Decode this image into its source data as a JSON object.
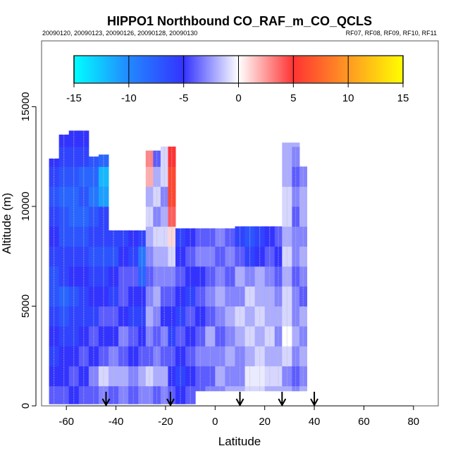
{
  "chart_data": {
    "type": "heatmap",
    "title": "HIPPO1 Northbound CO_RAF_m_CO_QCLS",
    "subtitle_left": "20090120, 20090123, 20090126, 20090128, 20090130",
    "subtitle_right": "RF07, RF08, RF09, RF10, RF11",
    "xlabel": "Latitude",
    "ylabel": "Altitude (m)",
    "xlim": [
      -70,
      90
    ],
    "ylim": [
      0,
      18300
    ],
    "xticks": [
      -60,
      -40,
      -20,
      0,
      20,
      40,
      60,
      80
    ],
    "yticks": [
      0,
      5000,
      10000,
      15000
    ],
    "colorbar": {
      "range": [
        -15,
        15
      ],
      "ticks": [
        -15,
        -10,
        -5,
        0,
        5,
        10,
        15
      ],
      "stops": [
        {
          "v": -15,
          "color": "#00ffff"
        },
        {
          "v": -10,
          "color": "#2288ff"
        },
        {
          "v": -5,
          "color": "#3333ff"
        },
        {
          "v": 0,
          "color": "#ffffff"
        },
        {
          "v": 5,
          "color": "#ff3333"
        },
        {
          "v": 10,
          "color": "#ff9922"
        },
        {
          "v": 15,
          "color": "#ffff00"
        }
      ]
    },
    "bin_altitude_m": 1000,
    "columns": [
      {
        "lat0": -67,
        "lat1": -63,
        "bottom": 100,
        "top": 12400,
        "values": [
          -4,
          -5,
          -6,
          -5,
          -6,
          -7,
          -7,
          -6,
          -5,
          -6,
          -7,
          -6,
          -5
        ]
      },
      {
        "lat0": -63,
        "lat1": -59,
        "bottom": 100,
        "top": 13600,
        "values": [
          -4,
          -5,
          -5,
          -6,
          -7,
          -8,
          -6,
          -6,
          -7,
          -7,
          -8,
          -7,
          -6,
          -5
        ]
      },
      {
        "lat0": -59,
        "lat1": -55,
        "bottom": 100,
        "top": 13800,
        "values": [
          -5,
          -4,
          -5,
          -6,
          -6,
          -7,
          -5,
          -6,
          -7,
          -8,
          -8,
          -7,
          -6,
          -5
        ]
      },
      {
        "lat0": -55,
        "lat1": -51,
        "bottom": 100,
        "top": 13800,
        "values": [
          -4,
          -5,
          -4,
          -5,
          -6,
          -6,
          -5,
          -6,
          -7,
          -8,
          -7,
          -8,
          -6,
          -5
        ]
      },
      {
        "lat0": -51,
        "lat1": -47,
        "bottom": 100,
        "top": 12500,
        "values": [
          -4,
          -3,
          -5,
          -4,
          -6,
          -5,
          -6,
          -7,
          -6,
          -7,
          -9,
          -8,
          -7
        ]
      },
      {
        "lat0": -47,
        "lat1": -43,
        "bottom": 100,
        "top": 12600,
        "values": [
          -3,
          -1,
          -4,
          -5,
          -4,
          -5,
          -6,
          -7,
          -6,
          -6,
          -11,
          -12,
          -8
        ]
      },
      {
        "lat0": -43,
        "lat1": -39,
        "bottom": 100,
        "top": 8800,
        "values": [
          -4,
          -2,
          -3,
          -5,
          -4,
          -6,
          -5,
          -7,
          -6
        ]
      },
      {
        "lat0": -39,
        "lat1": -35,
        "bottom": 100,
        "top": 8800,
        "values": [
          -3,
          -2,
          -4,
          -3,
          -5,
          -4,
          -4,
          -5,
          -6
        ]
      },
      {
        "lat0": -35,
        "lat1": -31,
        "bottom": 100,
        "top": 8800,
        "values": [
          -4,
          -3,
          -5,
          -4,
          -6,
          -5,
          -4,
          -6,
          -5
        ]
      },
      {
        "lat0": -31,
        "lat1": -28,
        "bottom": 100,
        "top": 8800,
        "values": [
          -3,
          -2,
          -4,
          -5,
          -6,
          -5,
          -8,
          -9,
          -6
        ]
      },
      {
        "lat0": -28,
        "lat1": -25,
        "bottom": 100,
        "top": 12800,
        "values": [
          -3,
          -1,
          -4,
          -3,
          -2,
          -3,
          -4,
          -3,
          -2,
          -1,
          -2,
          2,
          3
        ]
      },
      {
        "lat0": -25,
        "lat1": -22,
        "bottom": 100,
        "top": 12800,
        "values": [
          -4,
          -2,
          -3,
          -4,
          -3,
          -2,
          -3,
          -2,
          -1,
          -3,
          -1,
          -2,
          -4
        ]
      },
      {
        "lat0": -22,
        "lat1": -19,
        "bottom": 100,
        "top": 13000,
        "values": [
          -3,
          -2,
          -4,
          -3,
          -5,
          -4,
          -3,
          -2,
          -1,
          -2,
          -3,
          -1,
          -1
        ]
      },
      {
        "lat0": -19,
        "lat1": -16,
        "bottom": 100,
        "top": 13000,
        "values": [
          -4,
          -5,
          -4,
          -6,
          -5,
          -4,
          -3,
          -1,
          1,
          4,
          6,
          6,
          5
        ]
      },
      {
        "lat0": -16,
        "lat1": -12,
        "bottom": 100,
        "top": 8900,
        "values": [
          -5,
          -6,
          -5,
          -4,
          -6,
          -5,
          -4,
          -5,
          -6
        ]
      },
      {
        "lat0": -12,
        "lat1": -8,
        "bottom": 100,
        "top": 8900,
        "values": [
          -4,
          -5,
          -4,
          -5,
          -4,
          -6,
          -5,
          -4,
          -5
        ]
      },
      {
        "lat0": -8,
        "lat1": -4,
        "bottom": 750,
        "top": 8900,
        "values": [
          -4,
          -4,
          -3,
          -4,
          -5,
          -4,
          -5,
          -3,
          -4
        ]
      },
      {
        "lat0": -4,
        "lat1": 0,
        "bottom": 750,
        "top": 8900,
        "values": [
          -3,
          -4,
          -3,
          -2,
          -4,
          -3,
          -4,
          -3,
          -4
        ]
      },
      {
        "lat0": 0,
        "lat1": 4,
        "bottom": 750,
        "top": 8900,
        "values": [
          -3,
          -2,
          -3,
          -4,
          -3,
          -2,
          -3,
          -4,
          -3
        ]
      },
      {
        "lat0": 4,
        "lat1": 8,
        "bottom": 750,
        "top": 8900,
        "values": [
          -2,
          -3,
          -2,
          -3,
          -2,
          -3,
          -4,
          -3,
          -4
        ]
      },
      {
        "lat0": 8,
        "lat1": 12,
        "bottom": 750,
        "top": 9000,
        "values": [
          -2,
          -3,
          -3,
          -2,
          -1,
          -3,
          -2,
          -4,
          -6
        ]
      },
      {
        "lat0": 12,
        "lat1": 16,
        "bottom": 750,
        "top": 9000,
        "values": [
          -1,
          -0.5,
          -2,
          -1,
          -2,
          -1,
          -3,
          -6,
          -7
        ]
      },
      {
        "lat0": 16,
        "lat1": 20,
        "bottom": 750,
        "top": 9000,
        "values": [
          -1,
          -0.5,
          -1,
          -2,
          -1,
          -2,
          -2,
          -5,
          -6
        ]
      },
      {
        "lat0": 20,
        "lat1": 24,
        "bottom": 750,
        "top": 9000,
        "values": [
          -2,
          -1,
          -2,
          -1,
          -2,
          -2,
          -3,
          -4,
          -5
        ]
      },
      {
        "lat0": 24,
        "lat1": 27,
        "bottom": 750,
        "top": 9000,
        "values": [
          -2,
          -1,
          -2,
          -3,
          -2,
          -3,
          -4,
          -5,
          -4
        ]
      },
      {
        "lat0": 27,
        "lat1": 31,
        "bottom": 750,
        "top": 13200,
        "values": [
          -2,
          -3,
          -1,
          0,
          -1,
          -1,
          -2,
          -1,
          -2,
          -1,
          -1,
          -2,
          -2,
          -2
        ]
      },
      {
        "lat0": 31,
        "lat1": 34,
        "bottom": 750,
        "top": 13200,
        "values": [
          -3,
          -4,
          -3,
          -2,
          -3,
          -3,
          -4,
          -3,
          -3,
          -4,
          -3,
          -4,
          -3,
          -2
        ]
      },
      {
        "lat0": 34,
        "lat1": 37,
        "bottom": 750,
        "top": 12000,
        "values": [
          -2,
          -3,
          -2,
          -3,
          -2,
          -4,
          -3,
          -2,
          -3,
          -2,
          -2,
          -3
        ]
      }
    ],
    "flight_markers_lat": [
      -44,
      -18,
      10,
      27,
      40
    ]
  }
}
